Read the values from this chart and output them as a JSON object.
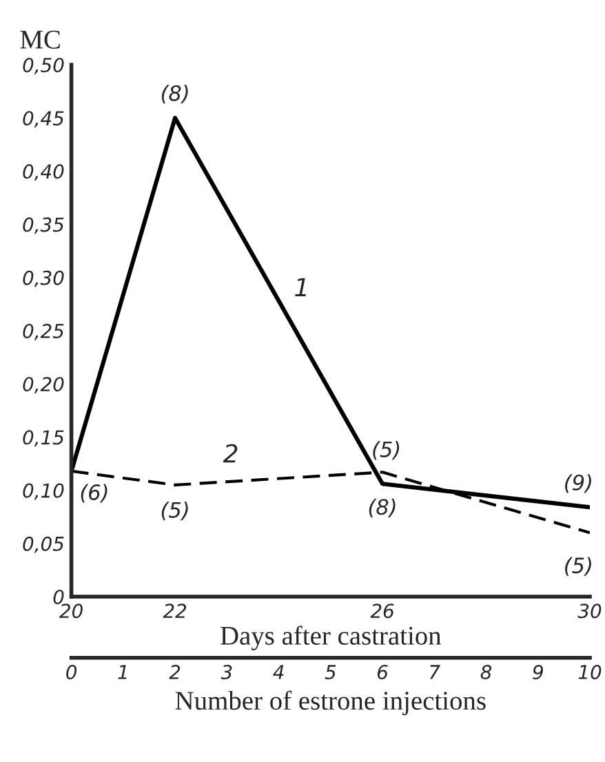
{
  "chart_data": {
    "type": "line",
    "ylabel": "MC",
    "xlabel": "Days after castration",
    "x2label": "Number of estrone injections",
    "x": [
      20,
      22,
      26,
      30
    ],
    "series": [
      {
        "name": "1",
        "color": "#000000",
        "line_style": "solid",
        "values": [
          0.118,
          0.45,
          0.106,
          0.084
        ]
      },
      {
        "name": "2",
        "color": "#000000",
        "line_style": "dashed",
        "values": [
          0.118,
          0.105,
          0.117,
          0.06
        ]
      }
    ],
    "xlim": [
      20,
      30
    ],
    "xticks": [
      20,
      22,
      26,
      30
    ],
    "x2lim": [
      0,
      10
    ],
    "x2ticks": [
      0,
      1,
      2,
      3,
      4,
      5,
      6,
      7,
      8,
      9,
      10
    ],
    "ylim": [
      0,
      0.5
    ],
    "yticks": [
      {
        "value": 0,
        "label": "0"
      },
      {
        "value": 0.05,
        "label": "0,05"
      },
      {
        "value": 0.1,
        "label": "0,10"
      },
      {
        "value": 0.15,
        "label": "0,15"
      },
      {
        "value": 0.2,
        "label": "0,20"
      },
      {
        "value": 0.25,
        "label": "0,25"
      },
      {
        "value": 0.3,
        "label": "0,30"
      },
      {
        "value": 0.35,
        "label": "0,35"
      },
      {
        "value": 0.4,
        "label": "0,40"
      },
      {
        "value": 0.45,
        "label": "0,45"
      },
      {
        "value": 0.5,
        "label": "0,50"
      }
    ],
    "grid": false,
    "legend": false,
    "marker": "none",
    "annotations": [
      {
        "text": "(6)",
        "x": 20,
        "y": 0.118
      },
      {
        "text": "(8)",
        "x": 22,
        "y": 0.45
      },
      {
        "text": "(5)",
        "x": 22,
        "y": 0.105
      },
      {
        "text": "(5)",
        "x": 26,
        "y": 0.117
      },
      {
        "text": "(8)",
        "x": 26,
        "y": 0.106
      },
      {
        "text": "(9)",
        "x": 30,
        "y": 0.084
      },
      {
        "text": "(5)",
        "x": 30,
        "y": 0.06
      }
    ]
  }
}
